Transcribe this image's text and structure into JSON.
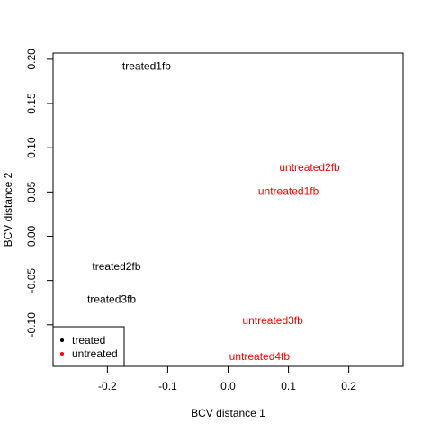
{
  "chart_data": {
    "type": "scatter",
    "title": "",
    "xlabel": "BCV distance 1",
    "ylabel": "BCV distance 2",
    "xlim": [
      -0.29,
      0.29
    ],
    "ylim": [
      -0.147,
      0.207
    ],
    "x_ticks": [
      -0.2,
      -0.1,
      0.0,
      0.1,
      0.2
    ],
    "x_tick_labels": [
      "-0.2",
      "-0.1",
      "0.0",
      "0.1",
      "0.2"
    ],
    "y_ticks": [
      -0.1,
      -0.05,
      0.0,
      0.05,
      0.1,
      0.15,
      0.2
    ],
    "y_tick_labels": [
      "-0.10",
      "-0.05",
      "0.00",
      "0.05",
      "0.10",
      "0.15",
      "0.20"
    ],
    "grid": false,
    "points": [
      {
        "label": "treated1fb",
        "x": -0.135,
        "y": 0.192,
        "group": "treated"
      },
      {
        "label": "treated2fb",
        "x": -0.185,
        "y": -0.034,
        "group": "treated"
      },
      {
        "label": "treated3fb",
        "x": -0.193,
        "y": -0.071,
        "group": "treated"
      },
      {
        "label": "untreated1fb",
        "x": 0.1,
        "y": 0.051,
        "group": "untreated"
      },
      {
        "label": "untreated2fb",
        "x": 0.135,
        "y": 0.078,
        "group": "untreated"
      },
      {
        "label": "untreated3fb",
        "x": 0.074,
        "y": -0.095,
        "group": "untreated"
      },
      {
        "label": "untreated4fb",
        "x": 0.052,
        "y": -0.136,
        "group": "untreated"
      }
    ],
    "legend": {
      "position": "bottom-left",
      "entries": [
        {
          "name": "treated",
          "color": "#000000"
        },
        {
          "name": "untreated",
          "color": "#ff0000"
        }
      ]
    },
    "colors": {
      "treated": "#000000",
      "untreated": "#ff0000"
    }
  }
}
